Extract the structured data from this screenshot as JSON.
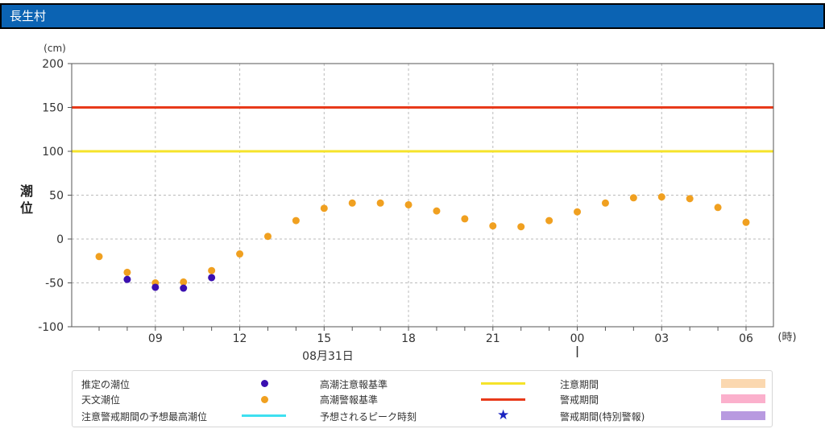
{
  "header": {
    "title": "長生村"
  },
  "chart_data": {
    "type": "scatter",
    "y_unit": "(cm)",
    "x_unit": "(時)",
    "ylabel": "潮位",
    "ylim": [
      -100,
      200
    ],
    "yticks": [
      -100,
      -50,
      0,
      50,
      100,
      150,
      200
    ],
    "date_label": "08月31日",
    "hours": [
      "07",
      "08",
      "09",
      "10",
      "11",
      "12",
      "13",
      "14",
      "15",
      "16",
      "17",
      "18",
      "19",
      "20",
      "21",
      "22",
      "23",
      "00",
      "01",
      "02",
      "03",
      "04",
      "05",
      "06"
    ],
    "x_tick_labels": [
      "09",
      "12",
      "15",
      "18",
      "21",
      "00",
      "03",
      "06"
    ],
    "series": [
      {
        "name": "天文潮位",
        "color": "#f0a020",
        "values": [
          -20,
          -38,
          -50,
          -49,
          -36,
          -17,
          3,
          21,
          35,
          41,
          41,
          39,
          32,
          23,
          15,
          14,
          21,
          31,
          41,
          47,
          48,
          46,
          36,
          19
        ]
      },
      {
        "name": "推定の潮位",
        "color": "#3a0fb0",
        "values": [
          null,
          -46,
          -55,
          -56,
          -44,
          null,
          null,
          null,
          null,
          null,
          null,
          null,
          null,
          null,
          null,
          null,
          null,
          null,
          null,
          null,
          null,
          null,
          null,
          null
        ]
      }
    ],
    "thresholds": [
      {
        "name": "高潮注意報基準",
        "value": 100,
        "color": "#f5e32a"
      },
      {
        "name": "高潮警報基準",
        "value": 150,
        "color": "#e83a1a"
      }
    ],
    "grid": true
  },
  "legend": {
    "items": [
      {
        "label": "推定の潮位",
        "color": "#3a0fb0"
      },
      {
        "label": "天文潮位",
        "color": "#f0a020"
      },
      {
        "label": "注意警戒期間の予想最高潮位",
        "color": "#3ee0f0"
      },
      {
        "label": "高潮注意報基準",
        "color": "#f5e32a"
      },
      {
        "label": "高潮警報基準",
        "color": "#e83a1a"
      },
      {
        "label": "予想されるピーク時刻",
        "color": "#1a23c0"
      },
      {
        "label": "注意期間",
        "color": "#fbd8b0"
      },
      {
        "label": "警戒期間",
        "color": "#fbb0cc"
      },
      {
        "label": "警戒期間(特別警報)",
        "color": "#b89ae0"
      }
    ]
  }
}
